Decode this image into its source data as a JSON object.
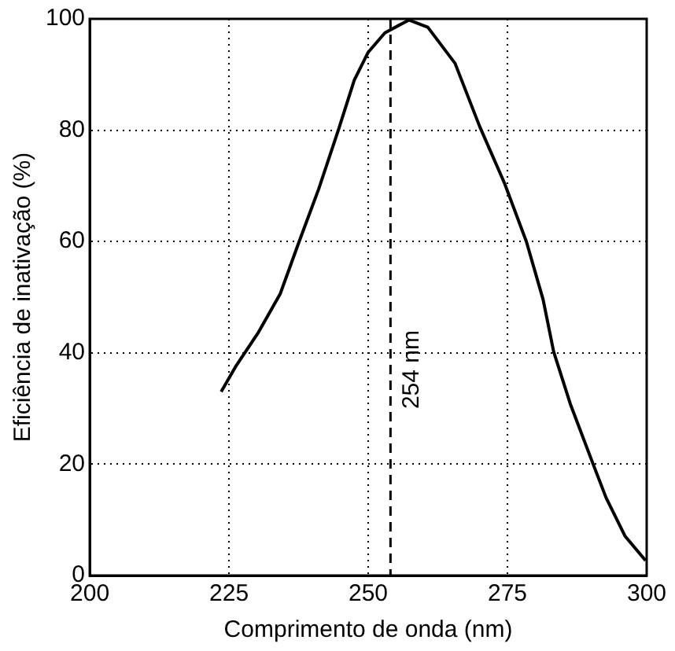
{
  "chart_data": {
    "type": "line",
    "xlabel": "Comprimento de onda (nm)",
    "ylabel": "Eficiência de inativação (%)",
    "x": [
      223.6,
      226.3,
      230.3,
      234.2,
      237.6,
      241.1,
      244.7,
      247.5,
      250,
      253,
      257.3,
      260.7,
      265.6,
      270,
      274.5,
      278.4,
      281.4,
      283.3,
      286.3,
      290.2,
      292.7,
      296.1,
      299.8
    ],
    "series": [
      {
        "color": "#000000",
        "values": [
          33,
          37.7,
          43.7,
          50.6,
          60,
          69.4,
          80.2,
          89,
          94,
          97.5,
          99.8,
          98.5,
          92,
          80.7,
          70.4,
          60,
          49.6,
          40.2,
          30.8,
          20.5,
          14,
          7.1,
          2.7
        ]
      }
    ],
    "xlim": [
      200,
      300
    ],
    "xticks": [
      200,
      225,
      250,
      275,
      300
    ],
    "ylim": [
      0,
      100
    ],
    "yticks": [
      0,
      20,
      40,
      60,
      80,
      100
    ],
    "grid": true,
    "legend": false,
    "marker": "none",
    "line_style": "solid",
    "ref_lines": [
      {
        "axis": "x",
        "value": 254,
        "label": "254 nm",
        "line_style": "dashed",
        "color": "#000000"
      }
    ]
  }
}
